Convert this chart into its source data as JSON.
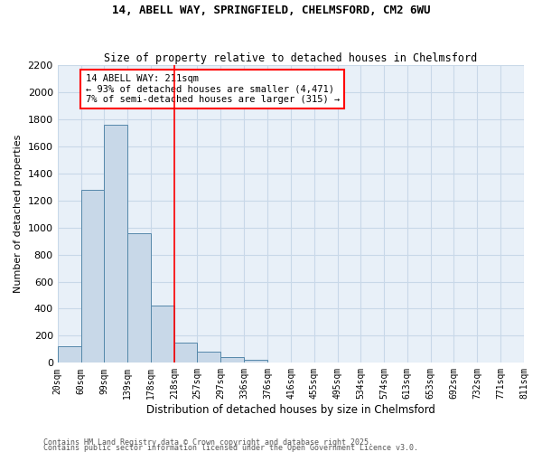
{
  "title_line1": "14, ABELL WAY, SPRINGFIELD, CHELMSFORD, CM2 6WU",
  "title_line2": "Size of property relative to detached houses in Chelmsford",
  "xlabel": "Distribution of detached houses by size in Chelmsford",
  "ylabel": "Number of detached properties",
  "footer_line1": "Contains HM Land Registry data © Crown copyright and database right 2025.",
  "footer_line2": "Contains public sector information licensed under the Open Government Licence v3.0.",
  "bins": [
    20,
    60,
    99,
    139,
    178,
    218,
    257,
    297,
    336,
    376,
    416,
    455,
    495,
    534,
    574,
    613,
    653,
    692,
    732,
    771,
    811
  ],
  "values": [
    120,
    1280,
    1760,
    960,
    420,
    150,
    80,
    40,
    20,
    0,
    0,
    0,
    0,
    0,
    0,
    0,
    0,
    0,
    0,
    0
  ],
  "bar_color": "#c8d8e8",
  "bar_edge_color": "#5588aa",
  "vline_x": 218,
  "vline_color": "red",
  "annotation_text_line1": "14 ABELL WAY: 211sqm",
  "annotation_text_line2": "← 93% of detached houses are smaller (4,471)",
  "annotation_text_line3": "7% of semi-detached houses are larger (315) →",
  "ylim": [
    0,
    2200
  ],
  "yticks": [
    0,
    200,
    400,
    600,
    800,
    1000,
    1200,
    1400,
    1600,
    1800,
    2000,
    2200
  ],
  "grid_color": "#c8d8e8",
  "background_color": "#e8f0f8"
}
